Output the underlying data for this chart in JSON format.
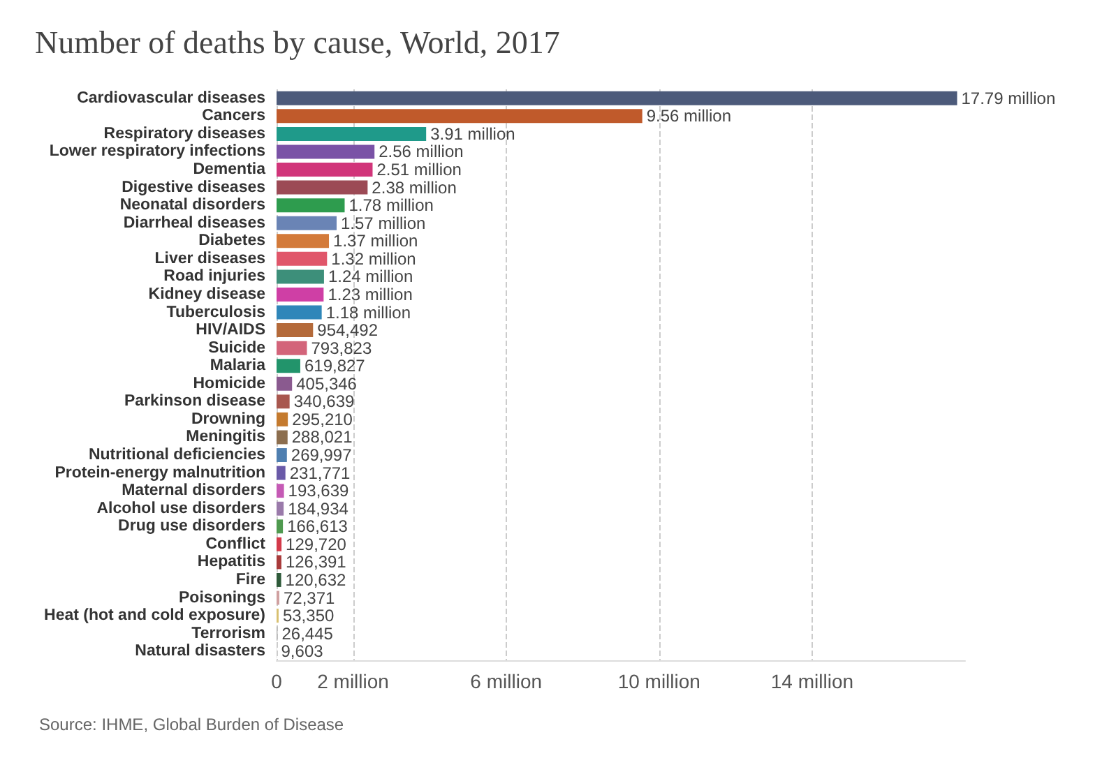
{
  "chart_data": {
    "type": "bar",
    "orientation": "horizontal",
    "title": "Number of deaths by cause, World, 2017",
    "categories": [
      "Cardiovascular diseases",
      "Cancers",
      "Respiratory diseases",
      "Lower respiratory infections",
      "Dementia",
      "Digestive diseases",
      "Neonatal disorders",
      "Diarrheal diseases",
      "Diabetes",
      "Liver diseases",
      "Road injuries",
      "Kidney disease",
      "Tuberculosis",
      "HIV/AIDS",
      "Suicide",
      "Malaria",
      "Homicide",
      "Parkinson disease",
      "Drowning",
      "Meningitis",
      "Nutritional deficiencies",
      "Protein-energy malnutrition",
      "Maternal disorders",
      "Alcohol use disorders",
      "Drug use disorders",
      "Conflict",
      "Hepatitis",
      "Fire",
      "Poisonings",
      "Heat (hot and cold exposure)",
      "Terrorism",
      "Natural disasters"
    ],
    "values": [
      17790000,
      9560000,
      3910000,
      2560000,
      2510000,
      2380000,
      1780000,
      1570000,
      1370000,
      1320000,
      1240000,
      1230000,
      1180000,
      954492,
      793823,
      619827,
      405346,
      340639,
      295210,
      288021,
      269997,
      231771,
      193639,
      184934,
      166613,
      129720,
      126391,
      120632,
      72371,
      53350,
      26445,
      9603
    ],
    "value_labels": [
      "17.79 million",
      "9.56 million",
      "3.91 million",
      "2.56 million",
      "2.51 million",
      "2.38 million",
      "1.78 million",
      "1.57 million",
      "1.37 million",
      "1.32 million",
      "1.24 million",
      "1.23 million",
      "1.18 million",
      "954,492",
      "793,823",
      "619,827",
      "405,346",
      "340,639",
      "295,210",
      "288,021",
      "269,997",
      "231,771",
      "193,639",
      "184,934",
      "166,613",
      "129,720",
      "126,391",
      "120,632",
      "72,371",
      "53,350",
      "26,445",
      "9,603"
    ],
    "colors": [
      "#4c5a7a",
      "#c05a2b",
      "#1f9a8a",
      "#7a52a6",
      "#d1357a",
      "#9c4a55",
      "#2e9c4e",
      "#6a84b5",
      "#d37a3a",
      "#e0566a",
      "#3d8f7a",
      "#cf3fa5",
      "#2f86b9",
      "#b46a3a",
      "#d3647a",
      "#22946b",
      "#8a5a8f",
      "#a8574e",
      "#c47a2e",
      "#8c6e4e",
      "#4f7fb0",
      "#6a5aa8",
      "#c55ab5",
      "#9a7aaa",
      "#4f9a4f",
      "#d33a4a",
      "#a83a3a",
      "#2e5a3a",
      "#d0a0a0",
      "#d8c070",
      "#b0b0b0",
      "#c8c8c8"
    ],
    "xlim": [
      0,
      18000000
    ],
    "xticks": [
      0,
      {
        "value": 2000000,
        "label": "2 million"
      },
      {
        "value": 6000000,
        "label": "6 million"
      },
      {
        "value": 10000000,
        "label": "10 million"
      },
      {
        "value": 14000000,
        "label": "14 million"
      }
    ],
    "grid": "x",
    "annotations": [
      "Source: IHME, Global Burden of Disease"
    ]
  }
}
